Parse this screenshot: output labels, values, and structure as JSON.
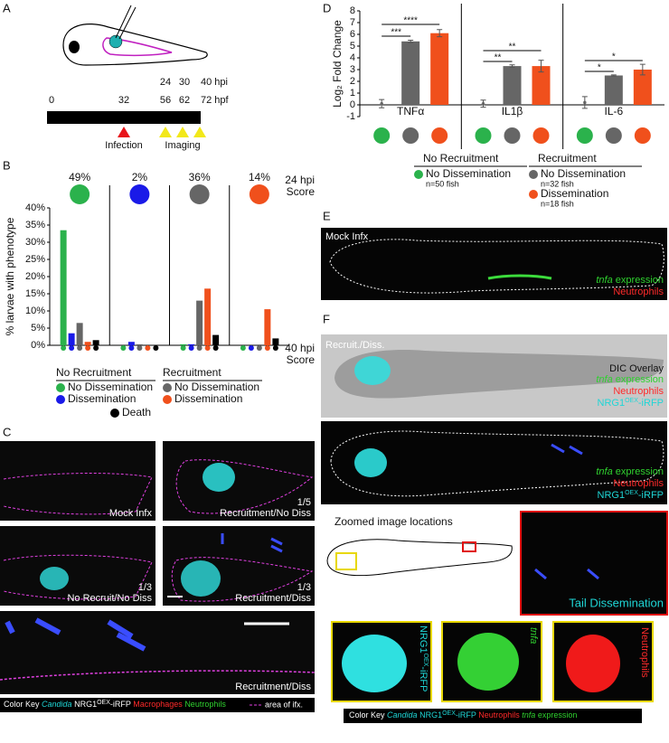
{
  "panel_labels": [
    "A",
    "B",
    "C",
    "D",
    "E",
    "F"
  ],
  "panel_a": {
    "hpi": [
      "24",
      "30",
      "40 hpi"
    ],
    "hpf": [
      "0",
      "32",
      "56",
      "62",
      "72 hpf"
    ],
    "infection": "Infection",
    "imaging": "Imaging"
  },
  "chart_data": [
    {
      "type": "bar",
      "y_label": "% larvae with phenotype",
      "top_label": [
        "24 hpi",
        "Score"
      ],
      "bottom_label": [
        "40 hpi",
        "Score"
      ],
      "categories": [
        "49%",
        "2%",
        "36%",
        "14%"
      ],
      "category_colors": [
        "#2bb24c",
        "#1a1ae8",
        "#666666",
        "#f0501c"
      ],
      "ylim": [
        0,
        40
      ],
      "yticks": [
        {
          "value": 0,
          "label": "0%"
        },
        {
          "value": 5,
          "label": "5%"
        },
        {
          "value": 10,
          "label": "10%"
        },
        {
          "value": 15,
          "label": "15%"
        },
        {
          "value": 20,
          "label": "20%"
        },
        {
          "value": 25,
          "label": "25%"
        },
        {
          "value": 30,
          "label": "30%"
        },
        {
          "value": 35,
          "label": "35%"
        },
        {
          "value": 40,
          "label": "40%"
        }
      ],
      "series": [
        {
          "name": "No Dissemination",
          "color": "#2bb24c",
          "values": [
            33.5,
            0,
            0.3,
            0
          ]
        },
        {
          "name": "Dissemination",
          "color": "#1a1ae8",
          "values": [
            3.5,
            1,
            0.3,
            0
          ]
        },
        {
          "name": "No Dissemination",
          "color": "#666666",
          "values": [
            6.5,
            0.3,
            13,
            0
          ]
        },
        {
          "name": "Dissemination",
          "color": "#f0501c",
          "values": [
            1,
            0,
            16.5,
            10.5
          ]
        },
        {
          "name": "Death",
          "color": "#000000",
          "values": [
            1.5,
            0,
            3,
            2
          ]
        }
      ],
      "legend_titles": [
        "No Recruitment",
        "Recruitment"
      ]
    },
    {
      "type": "bar",
      "y_label": "Log₂ Fold Change",
      "categories": [
        "TNFα",
        "IL1β",
        "IL-6"
      ],
      "ylim": [
        -1,
        8
      ],
      "yticks": [
        -1,
        0,
        1,
        2,
        3,
        4,
        5,
        6,
        7,
        8
      ],
      "series": [
        {
          "name": "No Dissemination",
          "color": "#2bb24c",
          "style": "point",
          "values": [
            0.1,
            0.1,
            0.2
          ],
          "errors": [
            0.35,
            0.3,
            0.5
          ]
        },
        {
          "name": "No Dissemination",
          "color": "#666666",
          "values": [
            5.4,
            3.3,
            2.5
          ],
          "errors": [
            0.1,
            0.1,
            0.05
          ]
        },
        {
          "name": "Dissemination",
          "color": "#f0501c",
          "values": [
            6.1,
            3.3,
            3.0
          ],
          "errors": [
            0.3,
            0.5,
            0.45
          ]
        }
      ],
      "legend_titles": [
        "No Recruitment",
        "Recruitment"
      ],
      "sample_sizes": [
        "n=50 fish",
        "n=32 fish",
        "n=18 fish"
      ],
      "annotations": [
        "***",
        "****",
        "**",
        "**",
        "*",
        "*"
      ]
    }
  ],
  "panel_c": {
    "images": [
      {
        "label": "Mock Infx"
      },
      {
        "fraction": "1/5",
        "label": "Recruitment/No Diss"
      },
      {
        "fraction": "1/3",
        "label": "No Recruit/No Diss"
      },
      {
        "fraction": "1/3",
        "label": "Recruitment/Diss"
      },
      {
        "label": "Recruitment/Diss"
      }
    ],
    "key": {
      "title": "Color Key",
      "candida": "Candida",
      "nrg": "NRG1",
      "oex": "OEX",
      "irfp": "-iRFP",
      "macrophages": "Macrophages",
      "neutrophils": "Neutrophils",
      "area": "area of ifx."
    }
  },
  "panel_e": {
    "label": "Mock Infx",
    "tnfa": "tnfa",
    "expression": "expression",
    "neutrophils": "Neutrophils"
  },
  "panel_f": {
    "label": "Recruit./Diss.",
    "dic": "DIC Overlay",
    "tnfa": "tnfa",
    "expression": "expression",
    "neutrophils": "Neutrophils",
    "nrg": "NRG1",
    "oex": "OEX",
    "irfp": "-iRFP",
    "zoom_title": "Zoomed image locations",
    "tail": "Tail Dissemination",
    "key": {
      "title": "Color Key",
      "candida": "Candida",
      "nrg": "NRG1",
      "oex": "OEX",
      "irfp": "-iRFP",
      "neutrophils": "Neutrophils",
      "tnfa": "tnfa",
      "expression": "expression"
    }
  }
}
